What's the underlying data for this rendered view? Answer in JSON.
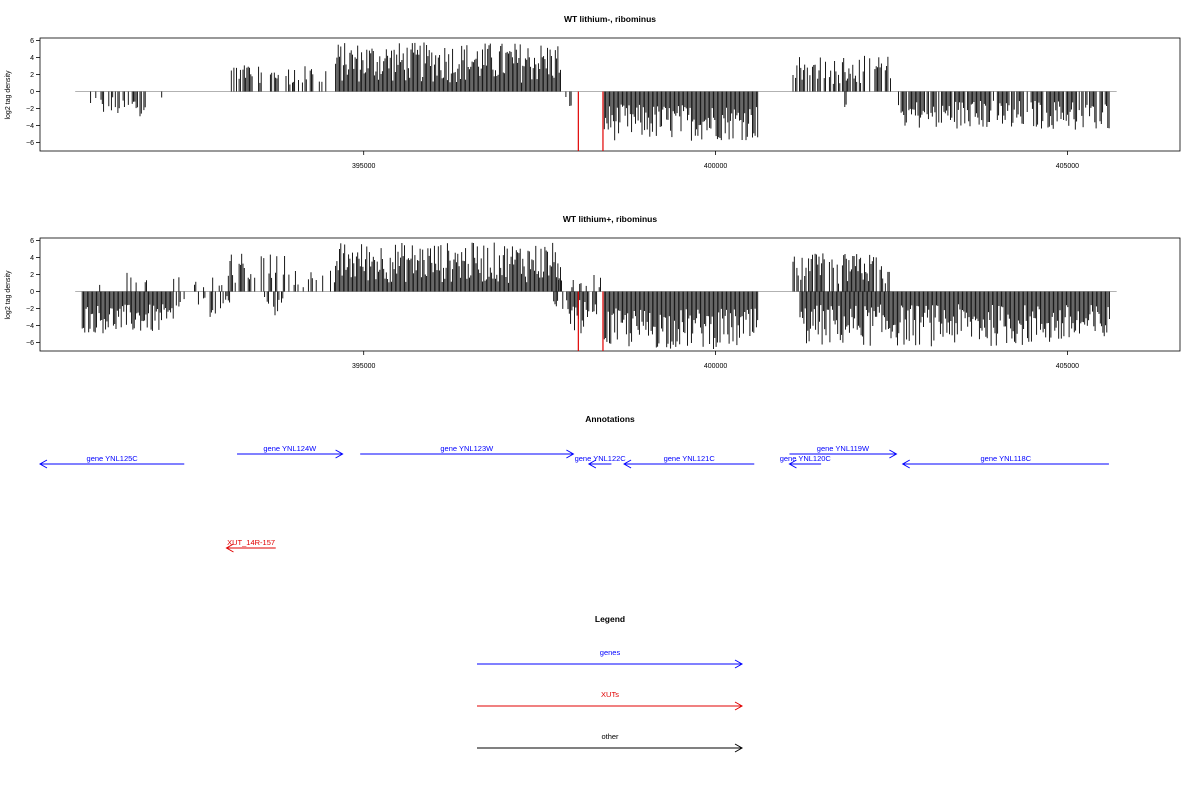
{
  "chart_data": [
    {
      "type": "bar",
      "title": "WT lithium-, ribominus",
      "ylabel": "log2 tag density",
      "xlim": [
        390400,
        406600
      ],
      "ylim": [
        -7,
        6.3
      ],
      "x_ticks": [
        395000,
        400000,
        405000
      ],
      "y_ticks": [
        6,
        4,
        2,
        0,
        -2,
        -4,
        -6
      ],
      "highlight_color": "#e00000",
      "bar_color": "#000000",
      "segments": [
        {
          "x0": 391100,
          "x1": 391900,
          "min": -3.0,
          "max": -0.5,
          "sign": -1,
          "density": 0.5
        },
        {
          "x0": 392000,
          "x1": 392300,
          "min": -1.0,
          "max": -0.5,
          "sign": -1,
          "density": 0.2
        },
        {
          "x0": 393100,
          "x1": 393600,
          "min": 1.0,
          "max": 3.2,
          "sign": 1,
          "density": 0.6
        },
        {
          "x0": 393600,
          "x1": 394000,
          "min": 0.8,
          "max": 2.8,
          "sign": 1,
          "density": 0.4
        },
        {
          "x0": 394000,
          "x1": 394500,
          "min": 0.8,
          "max": 3.0,
          "sign": 1,
          "density": 0.4
        },
        {
          "x0": 394600,
          "x1": 397800,
          "min": 1.0,
          "max": 5.8,
          "sign": 1,
          "density": 1.0
        },
        {
          "x0": 397800,
          "x1": 398000,
          "min": -2.0,
          "max": -0.5,
          "sign": -1,
          "density": 0.3
        },
        {
          "x0": 398400,
          "x1": 400600,
          "min": -5.8,
          "max": -1.5,
          "sign": -1,
          "density": 1.0
        },
        {
          "x0": 401100,
          "x1": 402500,
          "min": 0.8,
          "max": 4.2,
          "sign": 1,
          "density": 0.7
        },
        {
          "x0": 401800,
          "x1": 401900,
          "min": -3.0,
          "max": -1.5,
          "sign": -1,
          "density": 0.3
        },
        {
          "x0": 402600,
          "x1": 405600,
          "min": -4.5,
          "max": -1.0,
          "sign": -1,
          "density": 0.85
        }
      ],
      "highlights": [
        {
          "x": 398050,
          "y": -7
        },
        {
          "x": 398400,
          "y": -7
        }
      ]
    },
    {
      "type": "bar",
      "title": "WT lithium+, ribominus",
      "ylabel": "log2 tag density",
      "xlim": [
        390400,
        406600
      ],
      "ylim": [
        -7,
        6.3
      ],
      "x_ticks": [
        395000,
        400000,
        405000
      ],
      "y_ticks": [
        6,
        4,
        2,
        0,
        -2,
        -4,
        -6
      ],
      "highlight_color": "#e00000",
      "bar_color": "#000000",
      "segments": [
        {
          "x0": 391000,
          "x1": 392300,
          "min": -5.0,
          "max": -1.5,
          "sign": -1,
          "density": 1.0
        },
        {
          "x0": 391100,
          "x1": 392000,
          "min": 0.5,
          "max": 2.2,
          "sign": 1,
          "density": 0.2
        },
        {
          "x0": 392300,
          "x1": 393100,
          "min": -3.0,
          "max": -0.5,
          "sign": -1,
          "density": 0.4
        },
        {
          "x0": 392300,
          "x1": 393100,
          "min": 0.5,
          "max": 2.0,
          "sign": 1,
          "density": 0.2
        },
        {
          "x0": 393100,
          "x1": 393900,
          "min": 0.8,
          "max": 4.8,
          "sign": 1,
          "density": 0.6
        },
        {
          "x0": 393500,
          "x1": 393900,
          "min": -3.0,
          "max": -0.5,
          "sign": -1,
          "density": 0.3
        },
        {
          "x0": 393900,
          "x1": 394600,
          "min": 0.5,
          "max": 2.5,
          "sign": 1,
          "density": 0.3
        },
        {
          "x0": 394600,
          "x1": 397800,
          "min": 1.0,
          "max": 5.8,
          "sign": 1,
          "density": 1.0
        },
        {
          "x0": 397700,
          "x1": 398400,
          "min": -5.0,
          "max": -1.0,
          "sign": -1,
          "density": 0.7
        },
        {
          "x0": 397700,
          "x1": 398400,
          "min": 0.5,
          "max": 2.0,
          "sign": 1,
          "density": 0.3
        },
        {
          "x0": 398400,
          "x1": 400600,
          "min": -6.8,
          "max": -2.0,
          "sign": -1,
          "density": 1.0
        },
        {
          "x0": 401100,
          "x1": 402500,
          "min": 0.8,
          "max": 4.5,
          "sign": 1,
          "density": 0.8
        },
        {
          "x0": 401200,
          "x1": 405600,
          "min": -6.5,
          "max": -1.5,
          "sign": -1,
          "density": 1.0
        }
      ],
      "highlights": [
        {
          "x": 398050,
          "y": -7
        },
        {
          "x": 398400,
          "y": -7
        }
      ]
    }
  ],
  "annotations": {
    "title": "Annotations",
    "items": [
      {
        "label": "gene YNL125C",
        "x0": 390400,
        "x1": 392450,
        "dir": "left",
        "color": "#0000ff",
        "row": 1
      },
      {
        "label": "gene YNL124W",
        "x0": 393200,
        "x1": 394700,
        "dir": "right",
        "color": "#0000ff",
        "row": 0
      },
      {
        "label": "gene YNL123W",
        "x0": 394950,
        "x1": 397980,
        "dir": "right",
        "color": "#0000ff",
        "row": 0
      },
      {
        "label": "gene YNL122C",
        "x0": 398200,
        "x1": 398520,
        "dir": "left",
        "color": "#0000ff",
        "row": 1
      },
      {
        "label": "gene YNL121C",
        "x0": 398700,
        "x1": 400550,
        "dir": "left",
        "color": "#0000ff",
        "row": 1
      },
      {
        "label": "gene YNL120C",
        "x0": 401050,
        "x1": 401500,
        "dir": "left",
        "color": "#0000ff",
        "row": 1
      },
      {
        "label": "gene YNL119W",
        "x0": 401050,
        "x1": 402570,
        "dir": "right",
        "color": "#0000ff",
        "row": 0
      },
      {
        "label": "gene YNL118C",
        "x0": 402660,
        "x1": 405590,
        "dir": "left",
        "color": "#0000ff",
        "row": 1
      },
      {
        "label": "XUT_14R-157",
        "x0": 393050,
        "x1": 393750,
        "dir": "left",
        "color": "#e00000",
        "row": 2
      }
    ]
  },
  "legend": {
    "title": "Legend",
    "items": [
      {
        "label": "genes",
        "color": "#0000ff"
      },
      {
        "label": "XUTs",
        "color": "#e00000"
      },
      {
        "label": "other",
        "color": "#000000"
      }
    ]
  }
}
